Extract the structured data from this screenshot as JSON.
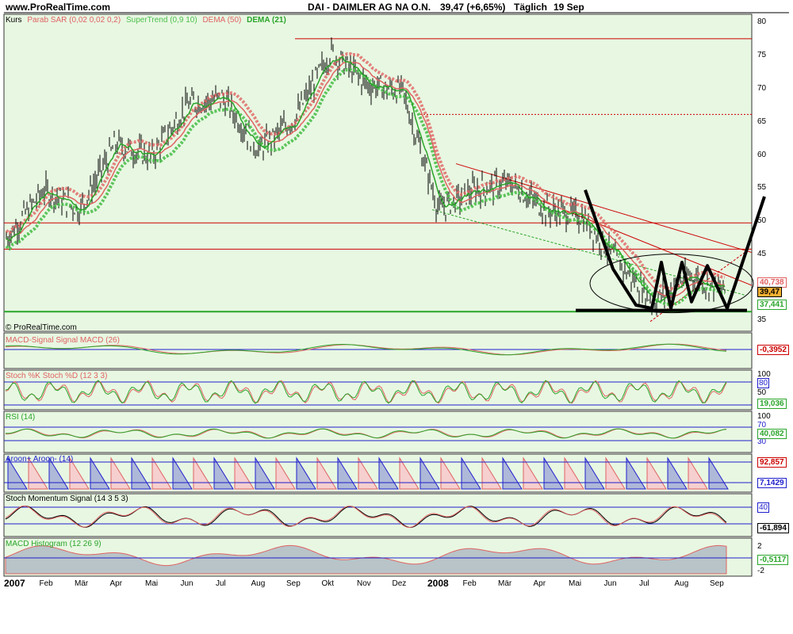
{
  "header": {
    "site": "www.ProRealTime.com",
    "title": "DAI - DAIMLER AG NA O.N.",
    "quote": "39,47 (+6,65%)",
    "period": "Täglich",
    "date": "19 Sep",
    "copyright": "© ProRealTime.com"
  },
  "colors": {
    "panel_bg": "#E8F7E2",
    "price": "#000000",
    "sar": "#E06262",
    "supertrend": "#4CBF4C",
    "dema50": "#E06262",
    "dema21": "#2AA52A",
    "hline_red": "#CC0000",
    "support": "#2AA52A",
    "pattern": "#000000",
    "blue": "#1F1FCC",
    "aroon_down_fill": "#F6CFCF",
    "aroon_up_fill": "#AEB8D8",
    "hist_fill": "#B8C4C8"
  },
  "main_panel": {
    "legend": [
      "Kurs",
      "Parab SAR (0,02 0,02 0,2)",
      "SuperTrend (0,9 10)",
      "DEMA (50)",
      "DEMA (21)"
    ],
    "y_ticks": [
      "80",
      "75",
      "70",
      "65",
      "60",
      "55",
      "50",
      "45",
      "40",
      "35"
    ],
    "last_price": "39,47",
    "tag_upper": "40,738",
    "tag_lower": "37,441"
  },
  "macd_panel": {
    "legend": "MACD-Signal Signal MACD (26)",
    "value": "-0,3952"
  },
  "stoch_panel": {
    "legend": "Stoch %K Stoch %D (12 3 3)",
    "ticks": [
      "100",
      "80",
      "50"
    ],
    "value": "19,036"
  },
  "rsi_panel": {
    "legend": "RSI (14)",
    "ticks": [
      "100",
      "70",
      "30"
    ],
    "value": "40,082"
  },
  "aroon_panel": {
    "legend": "Aroon+ Aroon- (14)",
    "value_up": "92,857",
    "value_down": "7,1429"
  },
  "momentum_panel": {
    "legend": "Stoch Momentum Signal (14 3 5 3)",
    "tick": "40",
    "value": "-61,894"
  },
  "hist_panel": {
    "legend": "MACD Histogram (12 26 9)",
    "ticks": [
      "2",
      "-2"
    ],
    "value": "-0,5117"
  },
  "x_axis": {
    "labels": [
      "2007",
      "Feb",
      "Mär",
      "Apr",
      "Mai",
      "Jun",
      "Jul",
      "Aug",
      "Sep",
      "Okt",
      "Nov",
      "Dez",
      "2008",
      "Feb",
      "Mär",
      "Apr",
      "Mai",
      "Jun",
      "Jul",
      "Aug",
      "Sep"
    ]
  },
  "chart_data": {
    "type": "line",
    "title": "DAI - DAIMLER AG NA O.N.",
    "xlabel": "",
    "ylabel": "",
    "ylim": [
      34,
      81
    ],
    "x": [
      "2007-01",
      "2007-02",
      "2007-03",
      "2007-04",
      "2007-05",
      "2007-06",
      "2007-07",
      "2007-08",
      "2007-09",
      "2007-10",
      "2007-11",
      "2007-12",
      "2008-01",
      "2008-02",
      "2008-03",
      "2008-04",
      "2008-05",
      "2008-06",
      "2008-07",
      "2008-08",
      "2008-09"
    ],
    "series": [
      {
        "name": "Kurs",
        "values": [
          48,
          55,
          52,
          62,
          60,
          68,
          69,
          61,
          66,
          76,
          71,
          70,
          52,
          55,
          56,
          52,
          51,
          44,
          38,
          42,
          39.5
        ]
      }
    ],
    "last_value": 39.47,
    "horizontal_lines": [
      78,
      66.5,
      50,
      46,
      36.5
    ],
    "grid": false,
    "legend_position": "top-left"
  }
}
